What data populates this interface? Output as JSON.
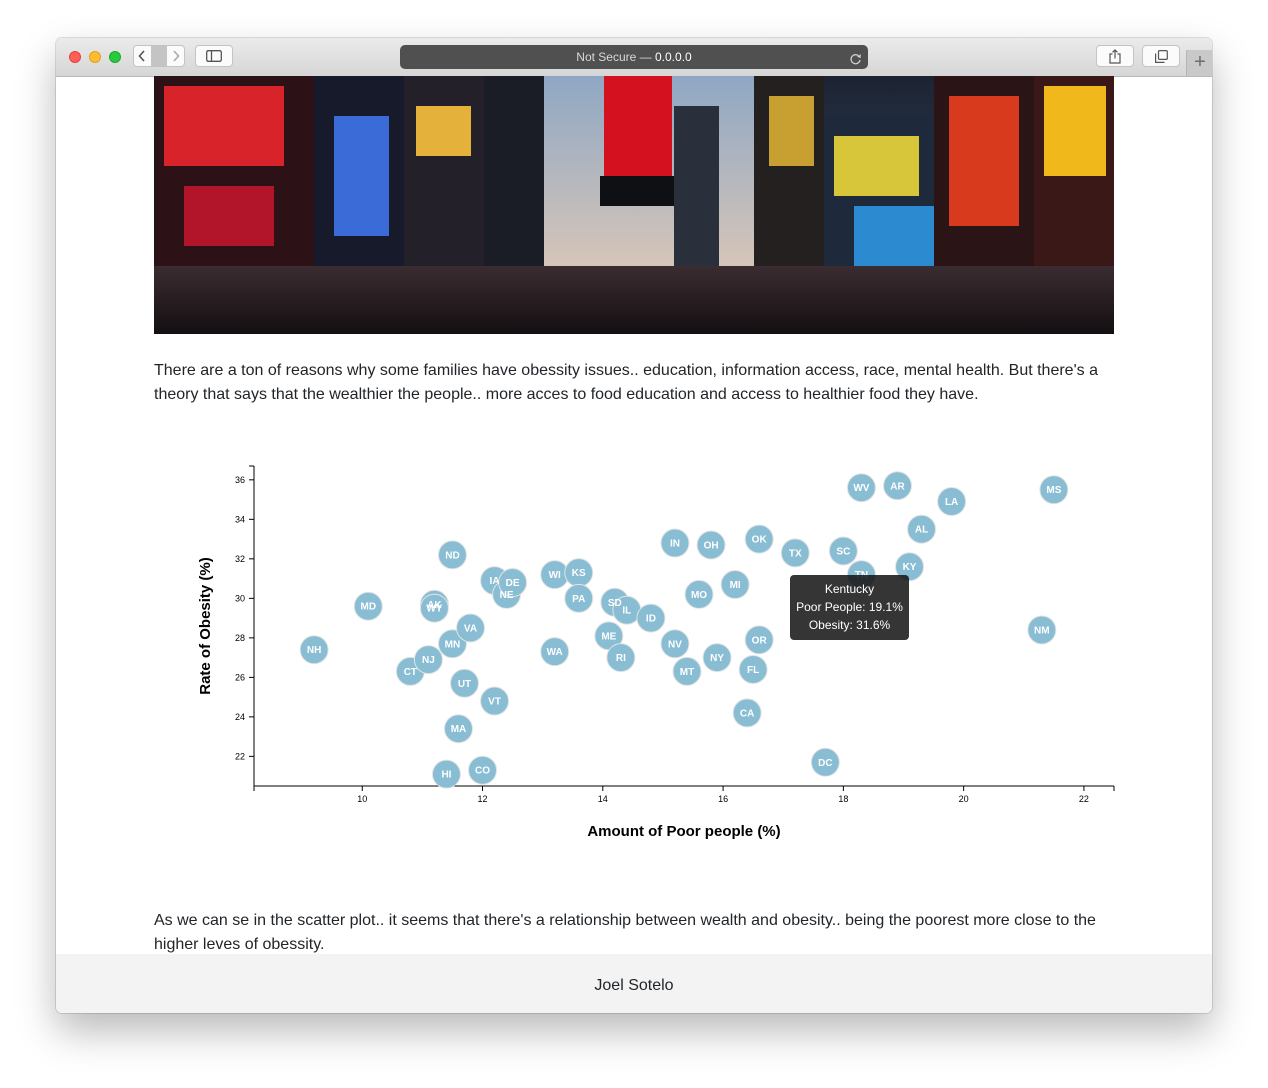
{
  "browser": {
    "address_prefix": "Not Secure — ",
    "address_host": "0.0.0.0"
  },
  "intro_text": "There are a ton of reasons why some families have obessity issues.. education, information access, race, mental health. But there's a theory that says that the wealthier the people.. more acces to food education and access to healthier food they have.",
  "conclusion_text": "As we can se in the scatter plot.. it seems that there's a relationship between wealth and obesity.. being the poorest more close to the higher leves of obessity.",
  "footer_text": "Joel Sotelo",
  "tooltip": {
    "state": "Kentucky",
    "poverty_line": "Poor People: 19.1%",
    "obesity_line": "Obesity: 31.6%"
  },
  "chart_data": {
    "type": "scatter",
    "xlabel": "Amount of Poor people (%)",
    "ylabel": "Rate of Obesity (%)",
    "xlim": [
      8.2,
      22.5
    ],
    "ylim": [
      20.5,
      36.7
    ],
    "xticks": [
      10,
      12,
      14,
      16,
      18,
      20,
      22
    ],
    "yticks": [
      22,
      24,
      26,
      28,
      30,
      32,
      34,
      36
    ],
    "marker_color": "#89bdd3",
    "points": [
      {
        "abbr": "NH",
        "x": 9.2,
        "y": 27.4
      },
      {
        "abbr": "MD",
        "x": 10.1,
        "y": 29.6
      },
      {
        "abbr": "CT",
        "x": 10.8,
        "y": 26.3
      },
      {
        "abbr": "NJ",
        "x": 11.1,
        "y": 26.9
      },
      {
        "abbr": "AK",
        "x": 11.2,
        "y": 29.7
      },
      {
        "abbr": "WY",
        "x": 11.2,
        "y": 29.5
      },
      {
        "abbr": "HI",
        "x": 11.4,
        "y": 21.1
      },
      {
        "abbr": "MA",
        "x": 11.6,
        "y": 23.4
      },
      {
        "abbr": "MN",
        "x": 11.5,
        "y": 27.7
      },
      {
        "abbr": "ND",
        "x": 11.5,
        "y": 32.2
      },
      {
        "abbr": "UT",
        "x": 11.7,
        "y": 25.7
      },
      {
        "abbr": "VA",
        "x": 11.8,
        "y": 28.5
      },
      {
        "abbr": "CO",
        "x": 12.0,
        "y": 21.3
      },
      {
        "abbr": "IA",
        "x": 12.2,
        "y": 30.9
      },
      {
        "abbr": "VT",
        "x": 12.2,
        "y": 24.8
      },
      {
        "abbr": "NE",
        "x": 12.4,
        "y": 30.2
      },
      {
        "abbr": "DE",
        "x": 12.5,
        "y": 30.8
      },
      {
        "abbr": "WI",
        "x": 13.2,
        "y": 31.2
      },
      {
        "abbr": "WA",
        "x": 13.2,
        "y": 27.3
      },
      {
        "abbr": "KS",
        "x": 13.6,
        "y": 31.3
      },
      {
        "abbr": "PA",
        "x": 13.6,
        "y": 30.0
      },
      {
        "abbr": "ME",
        "x": 14.1,
        "y": 28.1
      },
      {
        "abbr": "SD",
        "x": 14.2,
        "y": 29.8
      },
      {
        "abbr": "IL",
        "x": 14.4,
        "y": 29.4
      },
      {
        "abbr": "RI",
        "x": 14.3,
        "y": 27.0
      },
      {
        "abbr": "ID",
        "x": 14.8,
        "y": 29.0
      },
      {
        "abbr": "IN",
        "x": 15.2,
        "y": 32.8
      },
      {
        "abbr": "NV",
        "x": 15.2,
        "y": 27.7
      },
      {
        "abbr": "MT",
        "x": 15.4,
        "y": 26.3
      },
      {
        "abbr": "MO",
        "x": 15.6,
        "y": 30.2
      },
      {
        "abbr": "OH",
        "x": 15.8,
        "y": 32.7
      },
      {
        "abbr": "NY",
        "x": 15.9,
        "y": 27.0
      },
      {
        "abbr": "MI",
        "x": 16.2,
        "y": 30.7
      },
      {
        "abbr": "CA",
        "x": 16.4,
        "y": 24.2
      },
      {
        "abbr": "FL",
        "x": 16.5,
        "y": 26.4
      },
      {
        "abbr": "OK",
        "x": 16.6,
        "y": 33.0
      },
      {
        "abbr": "OR",
        "x": 16.6,
        "y": 27.9
      },
      {
        "abbr": "TX",
        "x": 17.2,
        "y": 32.3
      },
      {
        "abbr": "DC",
        "x": 17.7,
        "y": 21.7
      },
      {
        "abbr": "SC",
        "x": 18.0,
        "y": 32.4
      },
      {
        "abbr": "TN",
        "x": 18.3,
        "y": 31.2
      },
      {
        "abbr": "WV",
        "x": 18.3,
        "y": 35.6
      },
      {
        "abbr": "AR",
        "x": 18.9,
        "y": 35.7
      },
      {
        "abbr": "KY",
        "x": 19.1,
        "y": 31.6
      },
      {
        "abbr": "AL",
        "x": 19.3,
        "y": 33.5
      },
      {
        "abbr": "LA",
        "x": 19.8,
        "y": 34.9
      },
      {
        "abbr": "NM",
        "x": 21.3,
        "y": 28.4
      },
      {
        "abbr": "MS",
        "x": 21.5,
        "y": 35.5
      }
    ]
  }
}
